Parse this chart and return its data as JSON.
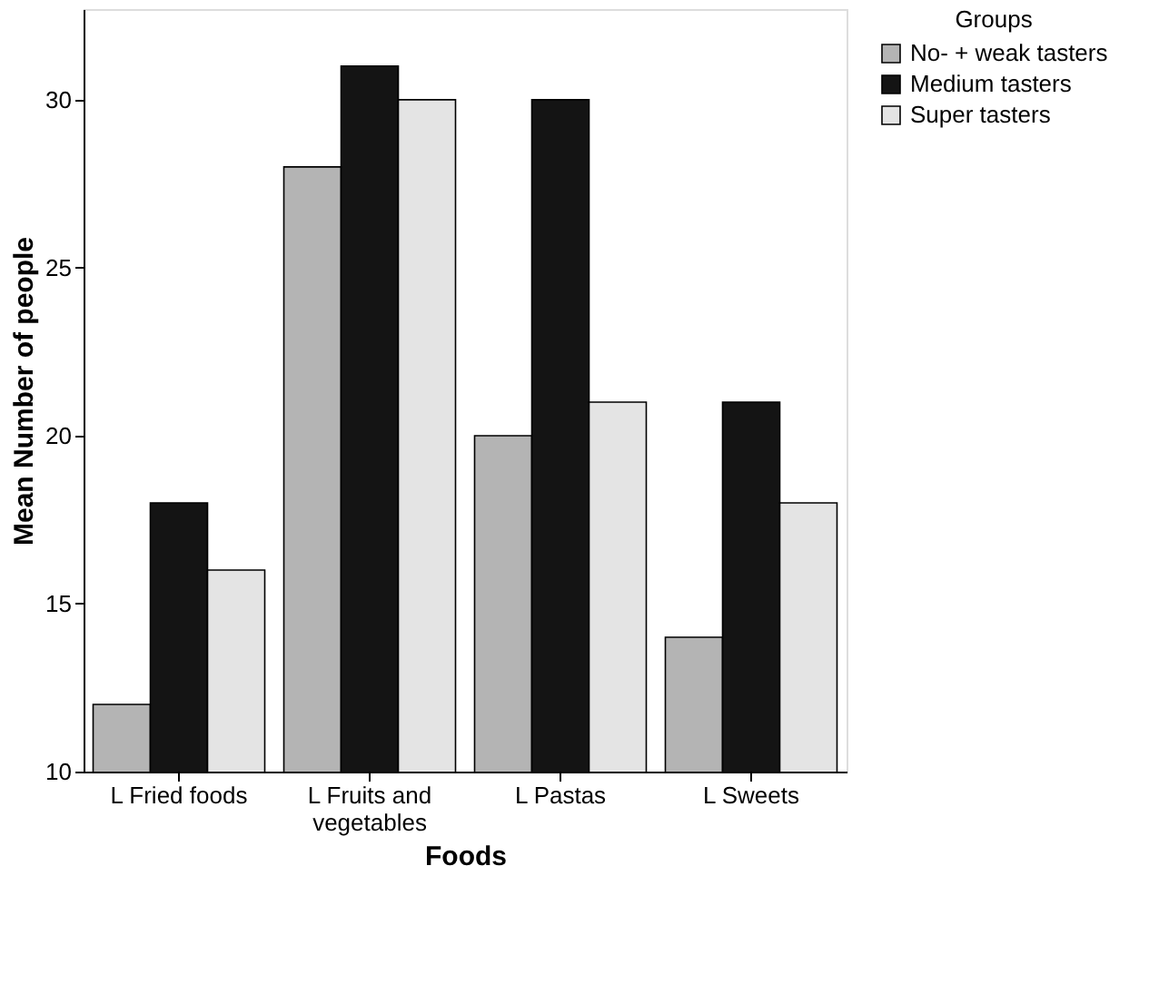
{
  "chart_data": {
    "type": "bar",
    "xlabel": "Foods",
    "ylabel": "Mean Number of people",
    "legend_title": "Groups",
    "legend": "top right",
    "grid": false,
    "categories": [
      "L Fried foods",
      "L Fruits and vegetables",
      "L Pastas",
      "L Sweets"
    ],
    "ylim": [
      10,
      32.7
    ],
    "yticks": [
      10,
      15,
      20,
      25,
      30
    ],
    "series": [
      {
        "name": "No- + weak tasters",
        "color": "#b4b4b4",
        "values": [
          12,
          28,
          20,
          14
        ]
      },
      {
        "name": "Medium tasters",
        "color": "#141414",
        "values": [
          18,
          31,
          30,
          21
        ]
      },
      {
        "name": "Super tasters",
        "color": "#e4e4e4",
        "values": [
          16,
          30,
          21,
          18
        ]
      }
    ]
  }
}
